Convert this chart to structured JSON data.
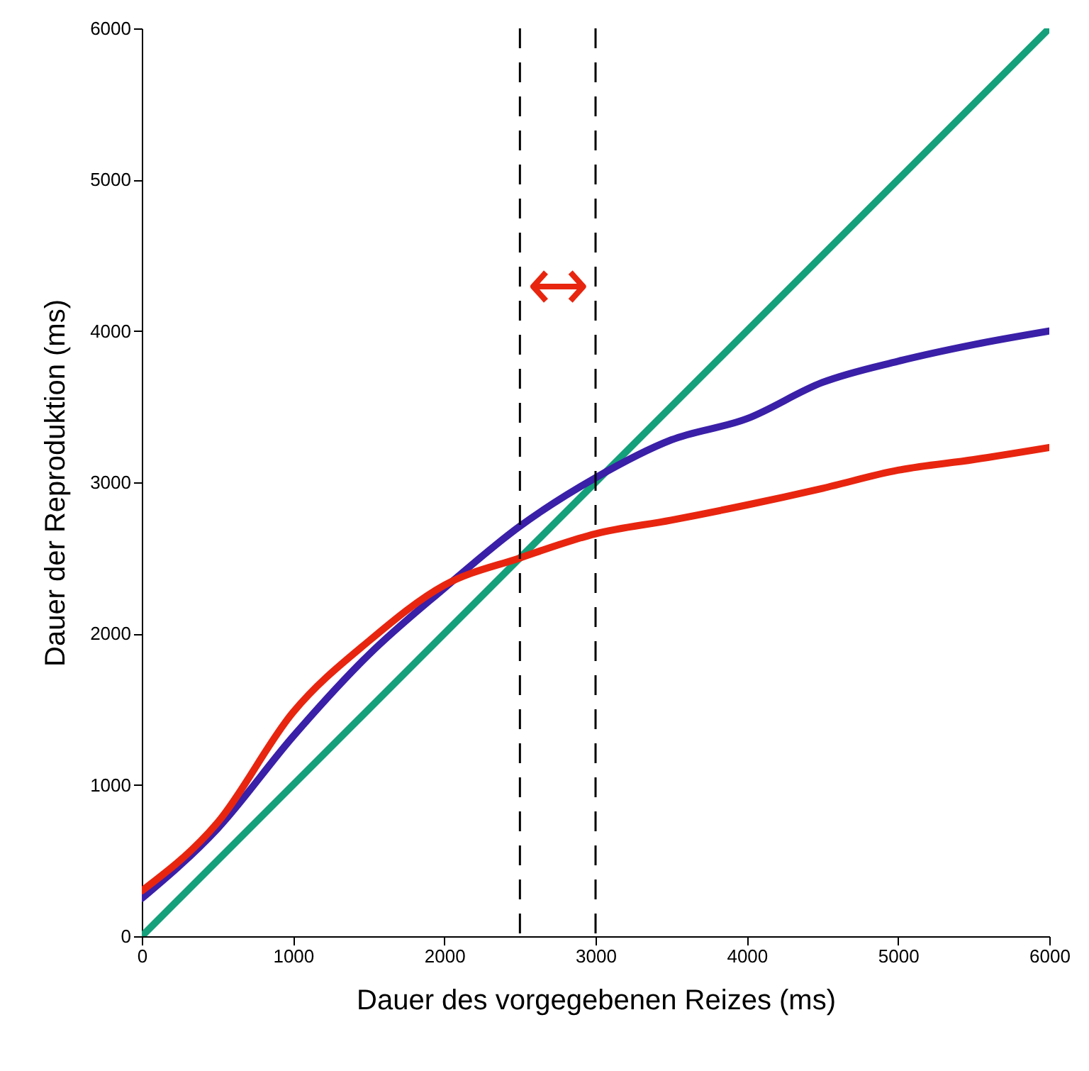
{
  "chart_data": {
    "type": "line",
    "xlabel": "Dauer des vorgegebenen Reizes (ms)",
    "ylabel": "Dauer der Reproduktion (ms)",
    "x": [
      0,
      500,
      1000,
      1500,
      2000,
      2500,
      3000,
      3500,
      4000,
      4500,
      5000,
      5500,
      6000
    ],
    "series": [
      {
        "color": "#14a07a",
        "x": [
          0,
          6000
        ],
        "values": [
          0,
          6000
        ]
      },
      {
        "color": "#3a1fa8",
        "values": [
          250,
          710,
          1320,
          1860,
          2300,
          2710,
          3030,
          3280,
          3420,
          3660,
          3800,
          3910,
          4000
        ]
      },
      {
        "color": "#e8250f",
        "values": [
          300,
          750,
          1480,
          1950,
          2320,
          2500,
          2660,
          2750,
          2850,
          2960,
          3080,
          3150,
          3230
        ]
      }
    ],
    "xlim": [
      0,
      6000
    ],
    "xticks": [
      0,
      1000,
      2000,
      3000,
      4000,
      5000,
      6000
    ],
    "ylim": [
      0,
      6000
    ],
    "yticks": [
      0,
      1000,
      2000,
      3000,
      4000,
      5000,
      6000
    ],
    "ref_lines": [
      {
        "axis": "x",
        "value": 2500,
        "color": "#000000",
        "line_style": "dashed"
      },
      {
        "axis": "x",
        "value": 3000,
        "color": "#000000",
        "line_style": "dashed"
      }
    ],
    "line_style": "solid",
    "marker": "none",
    "grid": false
  }
}
